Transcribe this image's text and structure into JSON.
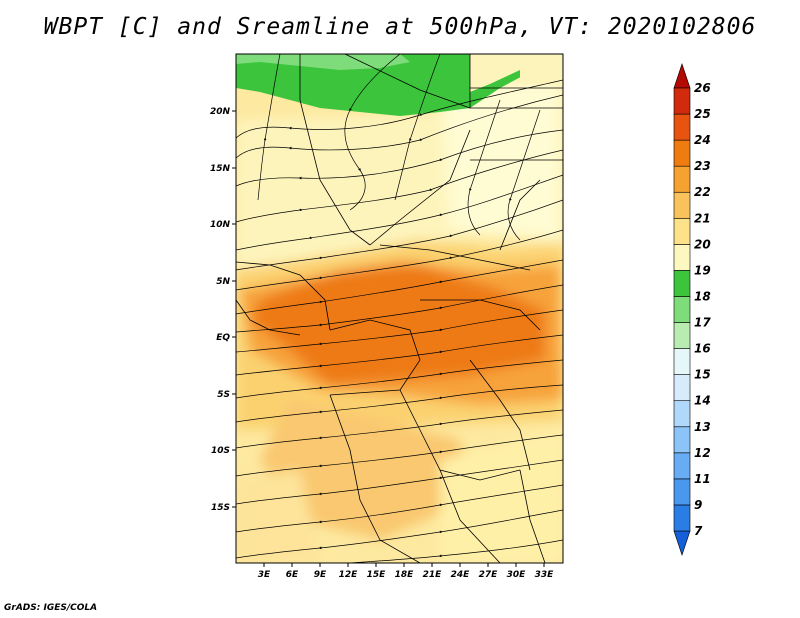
{
  "title": "WBPT [C] and Sreamline at 500hPa, VT: 2020102806",
  "credit": "GrADS: IGES/COLA",
  "map": {
    "lat_labels": [
      "20N",
      "15N",
      "10N",
      "5N",
      "EQ",
      "5S",
      "10S",
      "15S"
    ],
    "lon_labels": [
      "3E",
      "6E",
      "9E",
      "12E",
      "15E",
      "18E",
      "21E",
      "24E",
      "27E",
      "30E",
      "33E"
    ]
  },
  "colorbar": {
    "levels": [
      "7",
      "9",
      "11",
      "12",
      "13",
      "14",
      "15",
      "16",
      "17",
      "18",
      "19",
      "20",
      "21",
      "22",
      "23",
      "24",
      "25",
      "26"
    ],
    "colors": [
      "#1560d8",
      "#2b7de6",
      "#4a97ee",
      "#68adf3",
      "#8cc4f7",
      "#b0d8fa",
      "#d7ecfb",
      "#e6f7fa",
      "#b8ecb0",
      "#7fdc7a",
      "#3cc43c",
      "#fdf7c0",
      "#fde28a",
      "#f9c25a",
      "#f5a230",
      "#ee7c10",
      "#e75410",
      "#d22a0c",
      "#b30a06"
    ]
  }
}
